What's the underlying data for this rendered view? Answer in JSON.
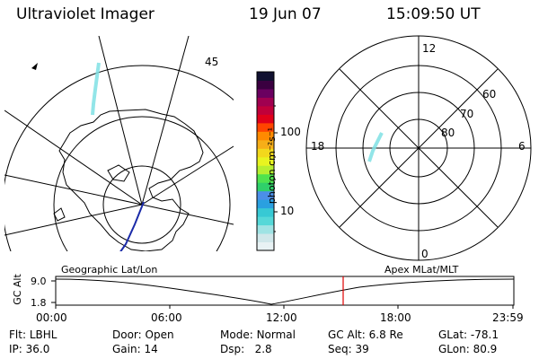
{
  "header": {
    "instrument": "Ultraviolet Imager",
    "date": "19 Jun 07",
    "time": "15:09:50 UT"
  },
  "colorbar": {
    "unit_label": "photon cm⁻²s⁻¹",
    "ticks": [
      "100",
      "10"
    ],
    "colors": [
      "#e8f2f4",
      "#d0e7ea",
      "#9fe3e4",
      "#55d8d8",
      "#37c9d4",
      "#2aa0e0",
      "#4b8fe8",
      "#2fd06a",
      "#4fe34e",
      "#b6ef30",
      "#e8f420",
      "#f2d81c",
      "#f6ae18",
      "#ff8a00",
      "#ff4500",
      "#e0001a",
      "#c0003a",
      "#a00050",
      "#6a0060",
      "#3a0040",
      "#101030"
    ]
  },
  "geo_panel": {
    "label": "Geographic Lat/Lon"
  },
  "polar_panel": {
    "label": "Apex MLat/MLT",
    "mlt_labels": [
      "12",
      "18",
      "6",
      "0"
    ],
    "lat_labels": [
      "60",
      "70",
      "80"
    ]
  },
  "alt_plot": {
    "ylabel": "GC Alt",
    "yticks": [
      "9.0",
      "1.8"
    ],
    "xticks": [
      "00:00",
      "06:00",
      "12:00",
      "18:00",
      "23:59"
    ],
    "marker_time": "15:09:50"
  },
  "status": {
    "row1": [
      {
        "key": "Flt:",
        "value": "LBHL"
      },
      {
        "key": "Door:",
        "value": "Open"
      },
      {
        "key": "Mode:",
        "value": "Normal"
      },
      {
        "key": "GC Alt:",
        "value": "6.8 Re"
      },
      {
        "key": "GLat:",
        "value": "-78.1"
      }
    ],
    "row2": [
      {
        "key": "IP:",
        "value": "36.0"
      },
      {
        "key": "Gain:",
        "value": "14"
      },
      {
        "key": "Dsp:",
        "value": "2.8"
      },
      {
        "key": "Seq:",
        "value": "39"
      },
      {
        "key": "GLon:",
        "value": "80.9"
      }
    ]
  }
}
